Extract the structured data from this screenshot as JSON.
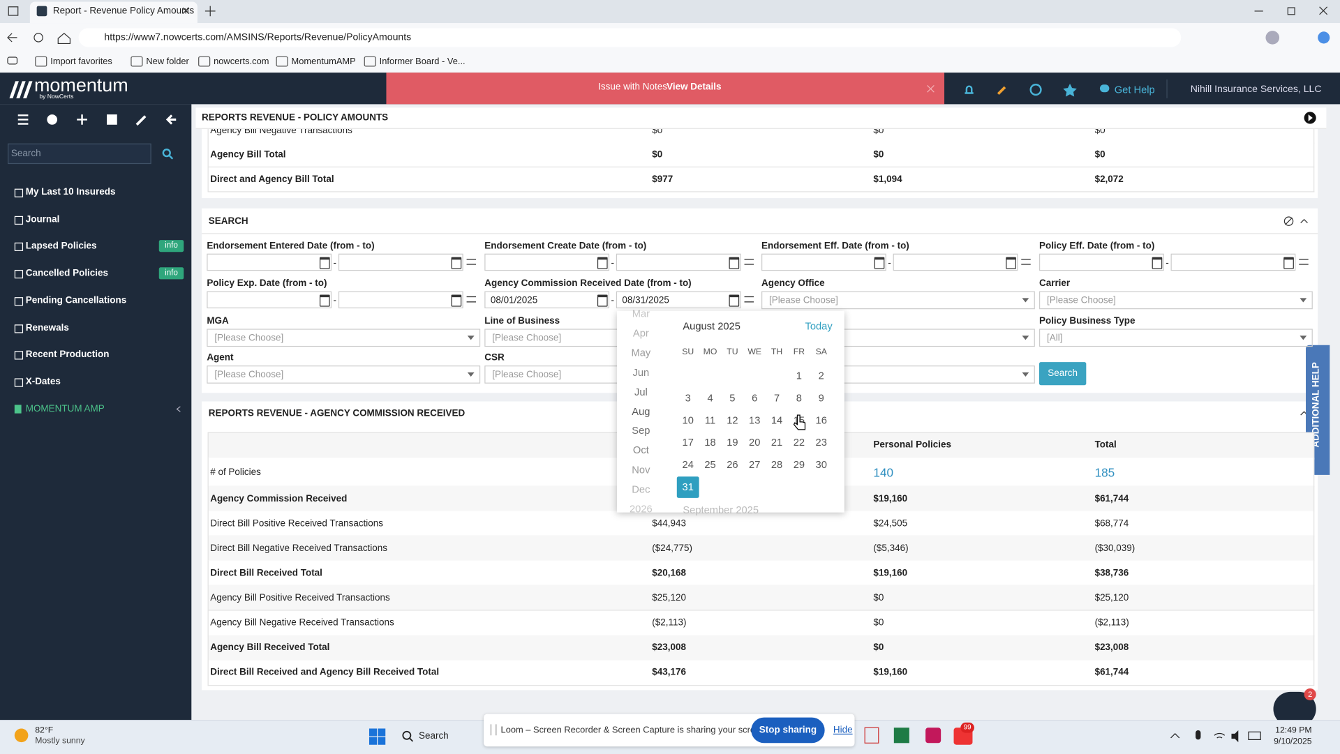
{
  "browser": {
    "tab_title": "Report - Revenue Policy Amounts",
    "url": "https://www7.nowcerts.com/AMSINS/Reports/Revenue/PolicyAmounts",
    "bookmarks": [
      "Import favorites",
      "New folder",
      "nowcerts.com",
      "MomentumAMP",
      "Informer Board - Ve..."
    ]
  },
  "header": {
    "brand": "momentum",
    "brand_sub": "by NowCerts",
    "alert": "Issue with Notes",
    "alert_link": "View Details",
    "help": "Get Help",
    "account": "Nihill Insurance Services, LLC"
  },
  "sidebar": {
    "search_placeholder": "Search",
    "items": [
      {
        "label": "My Last 10 Insureds"
      },
      {
        "label": "Journal"
      },
      {
        "label": "Lapsed Policies",
        "badge": "info"
      },
      {
        "label": "Cancelled Policies",
        "badge": "info"
      },
      {
        "label": "Pending Cancellations"
      },
      {
        "label": "Renewals"
      },
      {
        "label": "Recent Production"
      },
      {
        "label": "X-Dates"
      }
    ],
    "section": "MOMENTUM AMP"
  },
  "page_title": "REPORTS REVENUE - POLICY AMOUNTS",
  "summary_table": {
    "rows": [
      {
        "label": "Agency Bill Negative Transactions",
        "cells": [
          "$0",
          "$0",
          "$0"
        ]
      },
      {
        "label": "Agency Bill Total",
        "cells": [
          "$0",
          "$0",
          "$0"
        ],
        "bold": true
      },
      {
        "label": "Direct and Agency Bill Total",
        "cells": [
          "$977",
          "$1,094",
          "$2,072"
        ],
        "bold": true
      }
    ]
  },
  "search": {
    "title": "SEARCH",
    "range_separator": "-",
    "fields": [
      {
        "label": "Endorsement Entered Date (from - to)",
        "kind": "range"
      },
      {
        "label": "Endorsement Create Date (from - to)",
        "kind": "range"
      },
      {
        "label": "Endorsement Eff. Date (from - to)",
        "kind": "range"
      },
      {
        "label": "Policy Eff. Date (from - to)",
        "kind": "range"
      },
      {
        "label": "Policy Exp. Date (from - to)",
        "kind": "range"
      },
      {
        "label": "Agency Commission Received Date (from - to)",
        "kind": "range",
        "from": "08/01/2025",
        "to": "08/31/2025"
      },
      {
        "label": "Agency Office",
        "kind": "select",
        "value": "[Please Choose]"
      },
      {
        "label": "Carrier",
        "kind": "select",
        "value": "[Please Choose]"
      },
      {
        "label": "MGA",
        "kind": "select",
        "value": "[Please Choose]"
      },
      {
        "label": "Line of Business",
        "kind": "select",
        "value": "[Please Choose]"
      },
      {
        "kind": "select"
      },
      {
        "label": "Policy Business Type",
        "kind": "select",
        "value": "[All]"
      },
      {
        "label": "Agent",
        "kind": "select",
        "value": "[Please Choose]"
      },
      {
        "label": "CSR",
        "kind": "select",
        "value": "[Please Choose]"
      },
      {
        "kind": "select"
      }
    ],
    "button": "Search"
  },
  "calendar": {
    "months": [
      "Mar",
      "Apr",
      "May",
      "Jun",
      "Jul",
      "Aug",
      "Sep",
      "Oct",
      "Nov",
      "Dec",
      "2026"
    ],
    "title": "August 2025",
    "today": "Today",
    "weekdays": [
      "SU",
      "MO",
      "TU",
      "WE",
      "TH",
      "FR",
      "SA"
    ],
    "weeks": [
      [
        null,
        null,
        null,
        null,
        null,
        1,
        2
      ],
      [
        3,
        4,
        5,
        6,
        7,
        8,
        9
      ],
      [
        10,
        11,
        12,
        13,
        14,
        15,
        16
      ],
      [
        17,
        18,
        19,
        20,
        21,
        22,
        23
      ],
      [
        24,
        25,
        26,
        27,
        28,
        29,
        30
      ],
      [
        31
      ]
    ],
    "selected": 31,
    "next_title": "September 2025"
  },
  "commission": {
    "title": "REPORTS REVENUE - AGENCY COMMISSION RECEIVED",
    "headers": [
      "Personal Policies",
      "Total"
    ],
    "rows": [
      {
        "label": "# of Policies",
        "cells": [
          null,
          "140",
          "185"
        ],
        "link": true
      },
      {
        "label": "Agency Commission Received",
        "cells": [
          null,
          "$19,160",
          "$61,744"
        ],
        "bold": true
      },
      {
        "label": "Direct Bill Positive Received Transactions",
        "cells": [
          "$44,943",
          "$24,505",
          "$68,774"
        ]
      },
      {
        "label": "Direct Bill Negative Received Transactions",
        "cells": [
          "($24,775)",
          "($5,346)",
          "($30,039)"
        ]
      },
      {
        "label": "Direct Bill Received Total",
        "cells": [
          "$20,168",
          "$19,160",
          "$38,736"
        ],
        "bold": true
      },
      {
        "label": "Agency Bill Positive Received Transactions",
        "cells": [
          "$25,120",
          "$0",
          "$25,120"
        ]
      },
      {
        "label": "Agency Bill Negative Received Transactions",
        "cells": [
          "($2,113)",
          "$0",
          "($2,113)"
        ]
      },
      {
        "label": "Agency Bill Received Total",
        "cells": [
          "$23,008",
          "$0",
          "$23,008"
        ],
        "bold": true
      },
      {
        "label": "Direct Bill Received and Agency Bill Received Total",
        "cells": [
          "$43,176",
          "$19,160",
          "$61,744"
        ],
        "bold": true
      }
    ]
  },
  "help_tab": "ADDITIONAL HELP",
  "chat_badge": "2",
  "taskbar": {
    "temp": "82°F",
    "weather": "Mostly sunny",
    "search": "Search",
    "loom": "Loom – Screen Recorder & Screen Capture is sharing your screen.",
    "stop": "Stop sharing",
    "hide": "Hide",
    "zoom_badge": "99",
    "time": "12:49 PM",
    "date": "9/10/2025"
  }
}
